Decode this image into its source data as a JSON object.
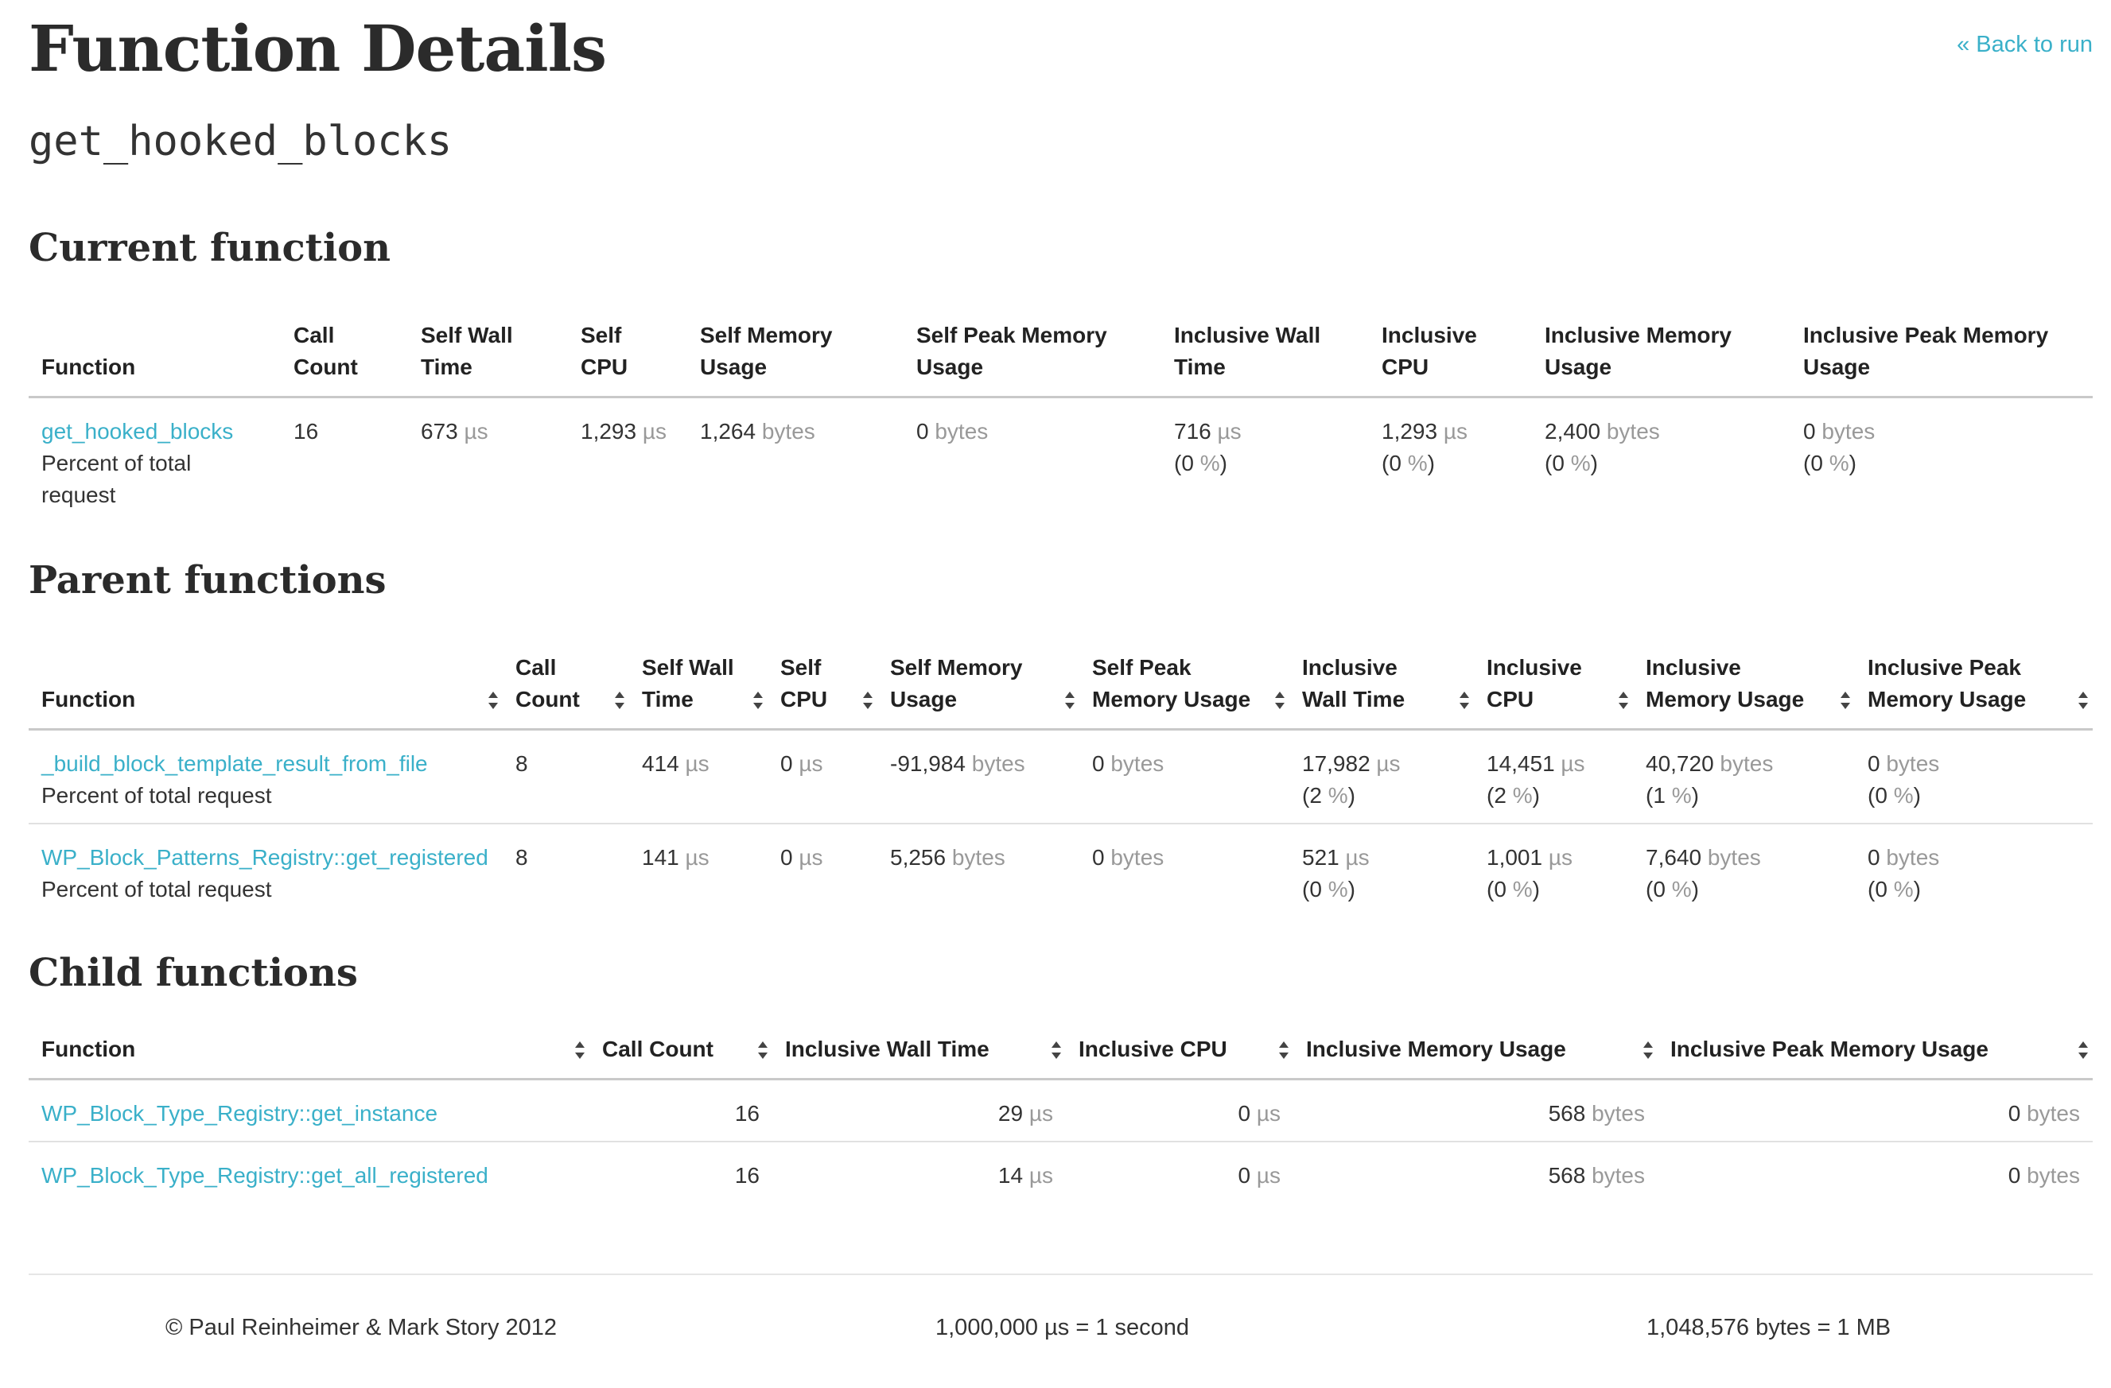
{
  "page_title": "Function Details",
  "back_link": "« Back to run",
  "function_name": "get_hooked_blocks",
  "sections": {
    "current": "Current function",
    "parent": "Parent functions",
    "child": "Child functions"
  },
  "current": {
    "headers": [
      "Function",
      "Call Count",
      "Self Wall Time",
      "Self CPU",
      "Self Memory Usage",
      "Self Peak Memory Usage",
      "Inclusive Wall Time",
      "Inclusive CPU",
      "Inclusive Memory Usage",
      "Inclusive Peak Memory Usage"
    ],
    "row": {
      "name": "get_hooked_blocks",
      "percent_label": "Percent of total request",
      "call_count": "16",
      "self_wall": "673",
      "self_cpu": "1,293",
      "self_mu": "1,264",
      "self_pmu": "0",
      "incl_wall": "716",
      "incl_wall_pct": "0",
      "incl_cpu": "1,293",
      "incl_cpu_pct": "0",
      "incl_mu": "2,400",
      "incl_mu_pct": "0",
      "incl_pmu": "0",
      "incl_pmu_pct": "0"
    }
  },
  "parent": {
    "headers": [
      "Function",
      "Call Count",
      "Self Wall Time",
      "Self CPU",
      "Self Memory Usage",
      "Self Peak Memory Usage",
      "Inclusive Wall Time",
      "Inclusive CPU",
      "Inclusive Memory Usage",
      "Inclusive Peak Memory Usage"
    ],
    "rows": [
      {
        "name": "_build_block_template_result_from_file",
        "percent_label": "Percent of total request",
        "call_count": "8",
        "self_wall": "414",
        "self_cpu": "0",
        "self_mu": "-91,984",
        "self_pmu": "0",
        "incl_wall": "17,982",
        "incl_wall_pct": "2",
        "incl_cpu": "14,451",
        "incl_cpu_pct": "2",
        "incl_mu": "40,720",
        "incl_mu_pct": "1",
        "incl_pmu": "0",
        "incl_pmu_pct": "0"
      },
      {
        "name": "WP_Block_Patterns_Registry::get_registered",
        "percent_label": "Percent of total request",
        "call_count": "8",
        "self_wall": "141",
        "self_cpu": "0",
        "self_mu": "5,256",
        "self_pmu": "0",
        "incl_wall": "521",
        "incl_wall_pct": "0",
        "incl_cpu": "1,001",
        "incl_cpu_pct": "0",
        "incl_mu": "7,640",
        "incl_mu_pct": "0",
        "incl_pmu": "0",
        "incl_pmu_pct": "0"
      }
    ]
  },
  "child": {
    "headers": [
      "Function",
      "Call Count",
      "Inclusive Wall Time",
      "Inclusive CPU",
      "Inclusive Memory Usage",
      "Inclusive Peak Memory Usage"
    ],
    "rows": [
      {
        "name": "WP_Block_Type_Registry::get_instance",
        "call_count": "16",
        "incl_wall": "29",
        "incl_cpu": "0",
        "incl_mu": "568",
        "incl_pmu": "0"
      },
      {
        "name": "WP_Block_Type_Registry::get_all_registered",
        "call_count": "16",
        "incl_wall": "14",
        "incl_cpu": "0",
        "incl_mu": "568",
        "incl_pmu": "0"
      }
    ]
  },
  "units": {
    "time": "µs",
    "mem": "bytes",
    "pct": "%"
  },
  "footer": {
    "copyright": "© Paul Reinheimer & Mark Story 2012",
    "time_note": "1,000,000 µs = 1 second",
    "mem_note": "1,048,576 bytes = 1 MB"
  }
}
